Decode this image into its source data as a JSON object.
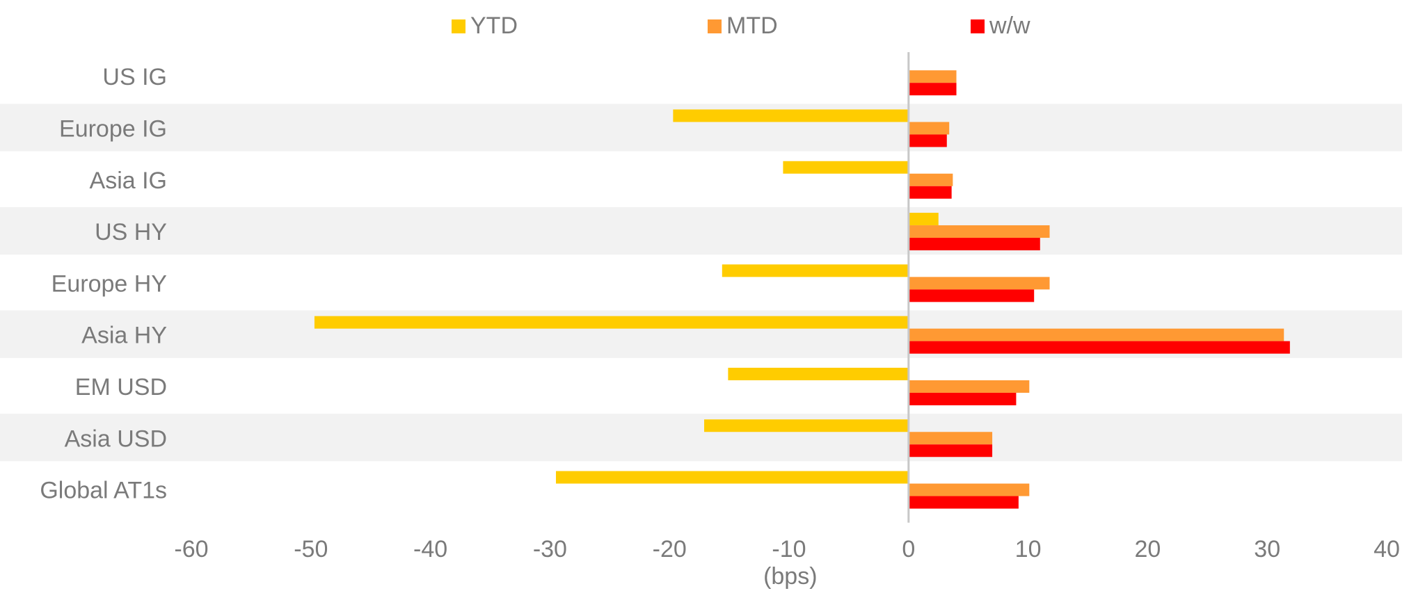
{
  "chart_data": {
    "type": "bar",
    "orientation": "horizontal",
    "categories": [
      "US IG",
      "Europe IG",
      "Asia IG",
      "US HY",
      "Europe HY",
      "Asia HY",
      "EM USD",
      "Asia USD",
      "Global AT1s"
    ],
    "series": [
      {
        "name": "YTD",
        "color": "#FFCC00",
        "values": [
          0,
          -19.7,
          -10.5,
          2.5,
          -15.6,
          -49.7,
          -15.1,
          -17.1,
          -29.5
        ]
      },
      {
        "name": "MTD",
        "color": "#FF9933",
        "values": [
          4.0,
          3.4,
          3.7,
          11.8,
          11.8,
          31.4,
          10.1,
          7.0,
          10.1
        ]
      },
      {
        "name": "w/w",
        "color": "#FF0000",
        "values": [
          4.0,
          3.2,
          3.6,
          11.0,
          10.5,
          31.9,
          9.0,
          7.0,
          9.2
        ]
      }
    ],
    "xlabel": "(bps)",
    "ylabel": "",
    "title": "",
    "xlim": [
      -60,
      40
    ],
    "xticks": [
      -60,
      -50,
      -40,
      -30,
      -20,
      -10,
      0,
      10,
      20,
      30,
      40
    ],
    "legend_position": "top-center",
    "grid": false,
    "alternate_row_shading": true,
    "shading_color": "#F2F2F2"
  }
}
